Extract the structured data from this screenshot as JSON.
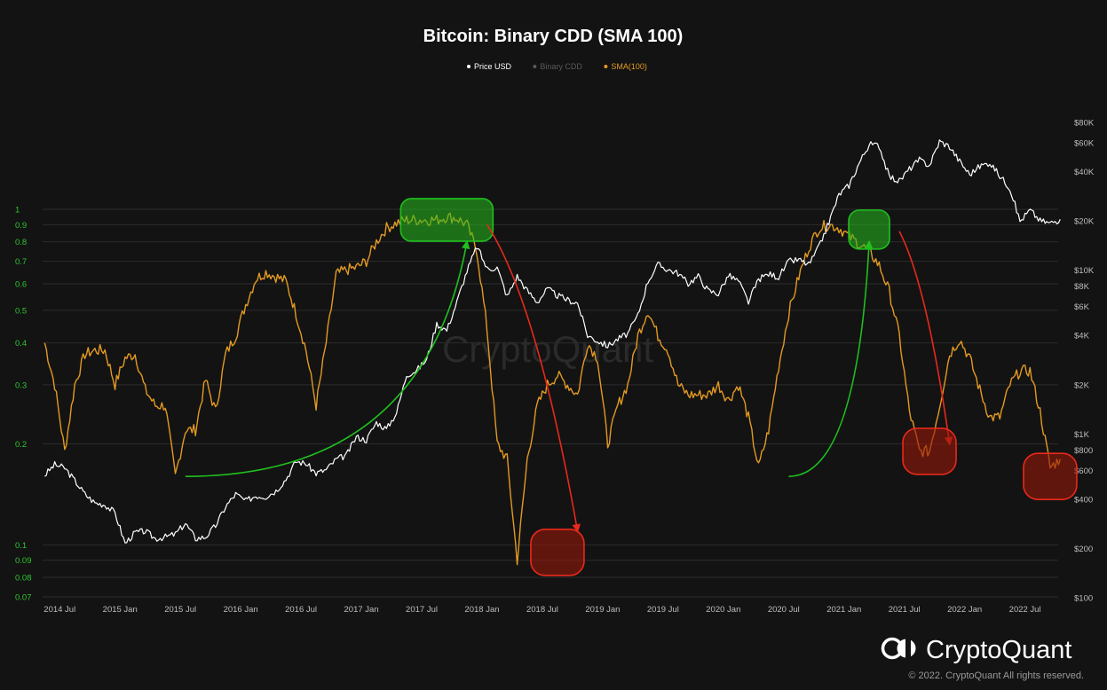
{
  "colors": {
    "background": "#131313",
    "grid": "#2c2c2c",
    "price": "#ffffff",
    "binary_cdd": "#5a5a5a",
    "sma": "#e39a22",
    "left_axis_text": "#2ec52e",
    "right_axis_text": "#bdbdbd",
    "highlight_green": "#1fbf1f",
    "highlight_red": "#e8291b"
  },
  "watermark": "CryptoQuant",
  "footer": {
    "brand": "CryptoQuant",
    "logo_icon": "cryptoquant-logo-icon",
    "copyright": "© 2022. CryptoQuant All rights reserved."
  },
  "chart_data": {
    "type": "line",
    "title": "Bitcoin: Binary CDD (SMA 100)",
    "legend_position": "top-center",
    "grid": true,
    "legend": [
      {
        "name": "Price USD",
        "color": "#ffffff"
      },
      {
        "name": "Binary CDD",
        "color": "#5a5a5a"
      },
      {
        "name": "SMA(100)",
        "color": "#e39a22"
      }
    ],
    "x_range": [
      "2014-05",
      "2022-10"
    ],
    "x_ticks": [
      "2014 Jul",
      "2015 Jan",
      "2015 Jul",
      "2016 Jan",
      "2016 Jul",
      "2017 Jan",
      "2017 Jul",
      "2018 Jan",
      "2018 Jul",
      "2019 Jan",
      "2019 Jul",
      "2020 Jan",
      "2020 Jul",
      "2021 Jan",
      "2021 Jul",
      "2022 Jan",
      "2022 Jul"
    ],
    "y_left": {
      "scale": "log",
      "range": [
        0.07,
        1
      ],
      "ticks": [
        "1",
        "0.9",
        "0.8",
        "0.7",
        "0.6",
        "0.5",
        "0.4",
        "0.3",
        "0.2",
        "0.1",
        "0.09",
        "0.08",
        "0.07"
      ]
    },
    "y_right": {
      "scale": "log",
      "range": [
        100,
        80000
      ],
      "ticks": [
        "$80K",
        "$60K",
        "$40K",
        "$20K",
        "$10K",
        "$8K",
        "$6K",
        "$4K",
        "$2K",
        "$1K",
        "$800",
        "$600",
        "$400",
        "$200",
        "$100"
      ]
    },
    "series": [
      {
        "name": "Price USD",
        "axis": "right",
        "points": [
          [
            "2014-05",
            560
          ],
          [
            "2014-06",
            650
          ],
          [
            "2014-07",
            620
          ],
          [
            "2014-08",
            520
          ],
          [
            "2014-09",
            430
          ],
          [
            "2014-10",
            380
          ],
          [
            "2014-11",
            370
          ],
          [
            "2014-12",
            330
          ],
          [
            "2015-01",
            215
          ],
          [
            "2015-02",
            250
          ],
          [
            "2015-03",
            255
          ],
          [
            "2015-04",
            230
          ],
          [
            "2015-05",
            235
          ],
          [
            "2015-06",
            245
          ],
          [
            "2015-07",
            285
          ],
          [
            "2015-08",
            230
          ],
          [
            "2015-09",
            235
          ],
          [
            "2015-10",
            275
          ],
          [
            "2015-11",
            360
          ],
          [
            "2015-12",
            430
          ],
          [
            "2016-01",
            390
          ],
          [
            "2016-02",
            420
          ],
          [
            "2016-03",
            415
          ],
          [
            "2016-04",
            450
          ],
          [
            "2016-05",
            530
          ],
          [
            "2016-06",
            680
          ],
          [
            "2016-07",
            660
          ],
          [
            "2016-08",
            575
          ],
          [
            "2016-09",
            605
          ],
          [
            "2016-10",
            700
          ],
          [
            "2016-11",
            740
          ],
          [
            "2016-12",
            960
          ],
          [
            "2017-01",
            920
          ],
          [
            "2017-02",
            1180
          ],
          [
            "2017-03",
            1070
          ],
          [
            "2017-04",
            1350
          ],
          [
            "2017-05",
            2300
          ],
          [
            "2017-06",
            2450
          ],
          [
            "2017-07",
            2850
          ],
          [
            "2017-08",
            4700
          ],
          [
            "2017-09",
            4300
          ],
          [
            "2017-10",
            6400
          ],
          [
            "2017-11",
            9900
          ],
          [
            "2017-12",
            14000
          ],
          [
            "2018-01",
            10200
          ],
          [
            "2018-02",
            10400
          ],
          [
            "2018-03",
            6900
          ],
          [
            "2018-04",
            9200
          ],
          [
            "2018-05",
            7500
          ],
          [
            "2018-06",
            6400
          ],
          [
            "2018-07",
            7700
          ],
          [
            "2018-08",
            7000
          ],
          [
            "2018-09",
            6600
          ],
          [
            "2018-10",
            6300
          ],
          [
            "2018-11",
            4000
          ],
          [
            "2018-12",
            3700
          ],
          [
            "2019-01",
            3450
          ],
          [
            "2019-02",
            3800
          ],
          [
            "2019-03",
            4100
          ],
          [
            "2019-04",
            5300
          ],
          [
            "2019-05",
            8600
          ],
          [
            "2019-06",
            10800
          ],
          [
            "2019-07",
            10100
          ],
          [
            "2019-08",
            9600
          ],
          [
            "2019-09",
            8300
          ],
          [
            "2019-10",
            9200
          ],
          [
            "2019-11",
            7500
          ],
          [
            "2019-12",
            7200
          ],
          [
            "2020-01",
            9300
          ],
          [
            "2020-02",
            8600
          ],
          [
            "2020-03",
            6400
          ],
          [
            "2020-04",
            8800
          ],
          [
            "2020-05",
            9500
          ],
          [
            "2020-06",
            9100
          ],
          [
            "2020-07",
            11300
          ],
          [
            "2020-08",
            11600
          ],
          [
            "2020-09",
            10800
          ],
          [
            "2020-10",
            13800
          ],
          [
            "2020-11",
            19700
          ],
          [
            "2020-12",
            29000
          ],
          [
            "2021-01",
            33000
          ],
          [
            "2021-02",
            45000
          ],
          [
            "2021-03",
            58800
          ],
          [
            "2021-04",
            57700
          ],
          [
            "2021-05",
            37300
          ],
          [
            "2021-06",
            35000
          ],
          [
            "2021-07",
            41500
          ],
          [
            "2021-08",
            47100
          ],
          [
            "2021-09",
            43800
          ],
          [
            "2021-10",
            61300
          ],
          [
            "2021-11",
            57000
          ],
          [
            "2021-12",
            46300
          ],
          [
            "2022-01",
            38500
          ],
          [
            "2022-02",
            43200
          ],
          [
            "2022-03",
            45500
          ],
          [
            "2022-04",
            37700
          ],
          [
            "2022-05",
            31800
          ],
          [
            "2022-06",
            19900
          ],
          [
            "2022-07",
            23300
          ],
          [
            "2022-08",
            20100
          ],
          [
            "2022-09",
            19400
          ],
          [
            "2022-10",
            20500
          ]
        ]
      },
      {
        "name": "SMA(100)",
        "axis": "left",
        "points": [
          [
            "2014-05",
            0.4
          ],
          [
            "2014-06",
            0.3
          ],
          [
            "2014-07",
            0.19
          ],
          [
            "2014-08",
            0.3
          ],
          [
            "2014-09",
            0.37
          ],
          [
            "2014-10",
            0.38
          ],
          [
            "2014-11",
            0.38
          ],
          [
            "2014-12",
            0.3
          ],
          [
            "2015-01",
            0.36
          ],
          [
            "2015-02",
            0.37
          ],
          [
            "2015-03",
            0.29
          ],
          [
            "2015-04",
            0.26
          ],
          [
            "2015-05",
            0.26
          ],
          [
            "2015-06",
            0.16
          ],
          [
            "2015-07",
            0.22
          ],
          [
            "2015-08",
            0.22
          ],
          [
            "2015-09",
            0.31
          ],
          [
            "2015-10",
            0.25
          ],
          [
            "2015-11",
            0.37
          ],
          [
            "2015-12",
            0.42
          ],
          [
            "2016-01",
            0.52
          ],
          [
            "2016-02",
            0.62
          ],
          [
            "2016-03",
            0.65
          ],
          [
            "2016-04",
            0.63
          ],
          [
            "2016-05",
            0.61
          ],
          [
            "2016-06",
            0.49
          ],
          [
            "2016-07",
            0.38
          ],
          [
            "2016-08",
            0.26
          ],
          [
            "2016-09",
            0.4
          ],
          [
            "2016-10",
            0.64
          ],
          [
            "2016-11",
            0.66
          ],
          [
            "2016-12",
            0.67
          ],
          [
            "2017-01",
            0.7
          ],
          [
            "2017-02",
            0.8
          ],
          [
            "2017-03",
            0.88
          ],
          [
            "2017-04",
            0.91
          ],
          [
            "2017-05",
            0.93
          ],
          [
            "2017-06",
            0.93
          ],
          [
            "2017-07",
            0.93
          ],
          [
            "2017-08",
            0.93
          ],
          [
            "2017-09",
            0.95
          ],
          [
            "2017-10",
            0.94
          ],
          [
            "2017-11",
            0.9
          ],
          [
            "2017-12",
            0.75
          ],
          [
            "2018-01",
            0.44
          ],
          [
            "2018-02",
            0.2
          ],
          [
            "2018-03",
            0.18
          ],
          [
            "2018-04",
            0.09
          ],
          [
            "2018-05",
            0.18
          ],
          [
            "2018-06",
            0.26
          ],
          [
            "2018-07",
            0.3
          ],
          [
            "2018-08",
            0.32
          ],
          [
            "2018-09",
            0.3
          ],
          [
            "2018-10",
            0.28
          ],
          [
            "2018-11",
            0.4
          ],
          [
            "2018-12",
            0.36
          ],
          [
            "2019-01",
            0.2
          ],
          [
            "2019-02",
            0.26
          ],
          [
            "2019-03",
            0.3
          ],
          [
            "2019-04",
            0.42
          ],
          [
            "2019-05",
            0.5
          ],
          [
            "2019-06",
            0.42
          ],
          [
            "2019-07",
            0.38
          ],
          [
            "2019-08",
            0.3
          ],
          [
            "2019-09",
            0.28
          ],
          [
            "2019-10",
            0.28
          ],
          [
            "2019-11",
            0.28
          ],
          [
            "2019-12",
            0.3
          ],
          [
            "2020-01",
            0.27
          ],
          [
            "2020-02",
            0.3
          ],
          [
            "2020-03",
            0.24
          ],
          [
            "2020-04",
            0.17
          ],
          [
            "2020-05",
            0.22
          ],
          [
            "2020-06",
            0.34
          ],
          [
            "2020-07",
            0.49
          ],
          [
            "2020-08",
            0.63
          ],
          [
            "2020-09",
            0.77
          ],
          [
            "2020-10",
            0.88
          ],
          [
            "2020-11",
            0.9
          ],
          [
            "2020-12",
            0.88
          ],
          [
            "2021-01",
            0.83
          ],
          [
            "2021-02",
            0.79
          ],
          [
            "2021-03",
            0.75
          ],
          [
            "2021-04",
            0.68
          ],
          [
            "2021-05",
            0.57
          ],
          [
            "2021-06",
            0.42
          ],
          [
            "2021-07",
            0.25
          ],
          [
            "2021-08",
            0.19
          ],
          [
            "2021-09",
            0.19
          ],
          [
            "2021-10",
            0.26
          ],
          [
            "2021-11",
            0.37
          ],
          [
            "2021-12",
            0.41
          ],
          [
            "2022-01",
            0.36
          ],
          [
            "2022-02",
            0.29
          ],
          [
            "2022-03",
            0.24
          ],
          [
            "2022-04",
            0.24
          ],
          [
            "2022-05",
            0.3
          ],
          [
            "2022-06",
            0.33
          ],
          [
            "2022-07",
            0.33
          ],
          [
            "2022-08",
            0.25
          ],
          [
            "2022-09",
            0.17
          ],
          [
            "2022-10",
            0.18
          ]
        ]
      }
    ],
    "annotations": [
      {
        "type": "arrow",
        "color": "#1fbf1f",
        "from": [
          "2015-07",
          0.16
        ],
        "to": [
          "2017-11",
          0.8
        ]
      },
      {
        "type": "box",
        "color": "#1fbf1f",
        "around": [
          "2017-09",
          0.93
        ]
      },
      {
        "type": "arrow",
        "color": "#e8291b",
        "from": [
          "2018-01",
          0.9
        ],
        "to": [
          "2018-10",
          0.11
        ]
      },
      {
        "type": "box",
        "color": "#e8291b",
        "around": [
          "2018-08",
          0.095
        ]
      },
      {
        "type": "arrow",
        "color": "#1fbf1f",
        "from": [
          "2020-07",
          0.16
        ],
        "to": [
          "2021-03",
          0.8
        ]
      },
      {
        "type": "box",
        "color": "#1fbf1f",
        "around": [
          "2021-03",
          0.87
        ]
      },
      {
        "type": "arrow",
        "color": "#e8291b",
        "from": [
          "2021-06",
          0.86
        ],
        "to": [
          "2021-11",
          0.2
        ]
      },
      {
        "type": "box",
        "color": "#e8291b",
        "around": [
          "2021-09",
          0.19
        ]
      },
      {
        "type": "box",
        "color": "#e8291b",
        "around": [
          "2022-09",
          0.16
        ]
      }
    ]
  }
}
